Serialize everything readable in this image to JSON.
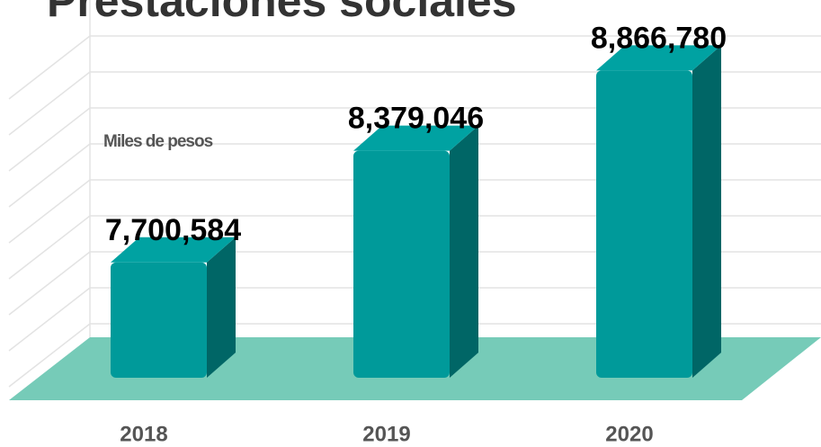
{
  "chart_data": {
    "type": "bar3d",
    "title": "Prestaciones sociales",
    "y_label": "Miles de pesos",
    "categories": [
      "2018",
      "2019",
      "2020"
    ],
    "values": [
      7700584,
      8379046,
      8866780
    ],
    "value_labels": [
      "7,700,584",
      "8,379,046",
      "8,866,780"
    ],
    "color": "#009a9a",
    "floor_color": "#76cbb8",
    "ylim": [
      7000000,
      9000000
    ]
  }
}
